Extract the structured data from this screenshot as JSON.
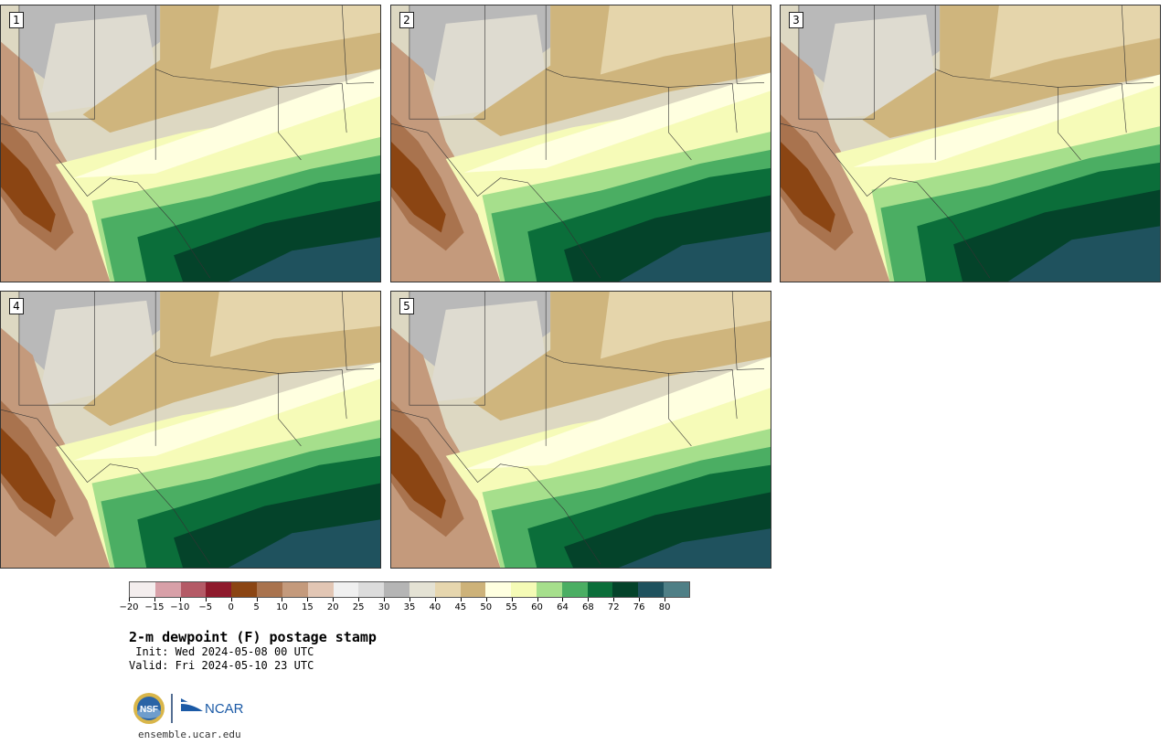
{
  "panels": [
    {
      "label": "1"
    },
    {
      "label": "2"
    },
    {
      "label": "3"
    },
    {
      "label": "4"
    },
    {
      "label": "5"
    }
  ],
  "colorbar": {
    "colors": [
      "#f4eeee",
      "#d8a0a8",
      "#b45a66",
      "#8e1a2c",
      "#8b4513",
      "#a9734e",
      "#c49a7c",
      "#e2c6b4",
      "#f0f0f0",
      "#dcdcdc",
      "#b5b5b5",
      "#e4e2d4",
      "#e6d6ae",
      "#cdb279",
      "#ffffe0",
      "#f5fbb6",
      "#a6df8c",
      "#4bae63",
      "#0b6e3a",
      "#04432a",
      "#1f525e",
      "#4f7f86"
    ],
    "ticks": [
      "−20",
      "−15",
      "−10",
      "−5",
      "0",
      "5",
      "10",
      "15",
      "20",
      "25",
      "30",
      "35",
      "40",
      "45",
      "50",
      "55",
      "60",
      "64",
      "68",
      "72",
      "76",
      "80"
    ]
  },
  "title": "2-m dewpoint (F) postage stamp",
  "init": " Init: Wed 2024-05-08 00 UTC",
  "valid": "Valid: Fri 2024-05-10 23 UTC",
  "logos": {
    "nsf": "NSF",
    "ncar": "NCAR"
  },
  "url": "ensemble.ucar.edu"
}
